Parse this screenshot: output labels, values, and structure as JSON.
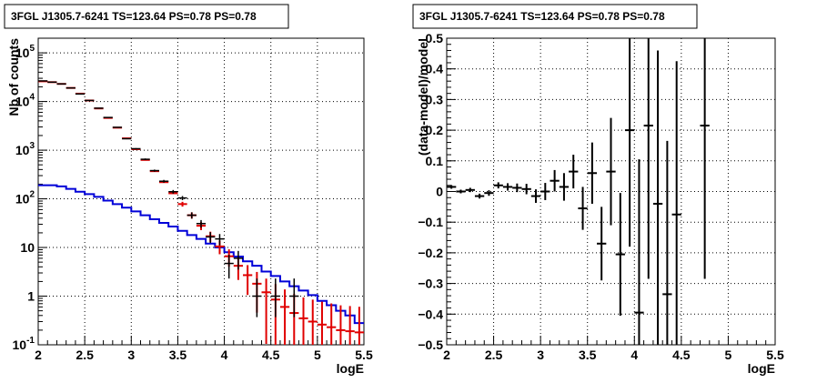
{
  "colors": {
    "data": "#000000",
    "model": "#e00000",
    "background": "#0000d8",
    "grid": "#000000"
  },
  "chart_data": [
    {
      "type": "line",
      "title": "3FGL J1305.7-6241 TS=123.64 PS=0.78 PS=0.78",
      "xlabel": "logE",
      "ylabel": "Nb of counts",
      "xlim": [
        2,
        5.5
      ],
      "ylim": [
        0.1,
        200000
      ],
      "yscale": "log",
      "grid": true,
      "x_ticks": [
        "2",
        "2.5",
        "3",
        "3.5",
        "4",
        "4.5",
        "5",
        "5.5"
      ],
      "y_ticks": [
        {
          "v": 0.1,
          "base": "10",
          "exp": "-1"
        },
        {
          "v": 1,
          "base": "1",
          "exp": ""
        },
        {
          "v": 10,
          "base": "10",
          "exp": ""
        },
        {
          "v": 100,
          "base": "10",
          "exp": "2"
        },
        {
          "v": 1000,
          "base": "10",
          "exp": "3"
        },
        {
          "v": 10000,
          "base": "10",
          "exp": "4"
        },
        {
          "v": 100000,
          "base": "10",
          "exp": "5"
        }
      ],
      "bin_edges": [
        2.0,
        2.1,
        2.2,
        2.3,
        2.4,
        2.5,
        2.6,
        2.7,
        2.8,
        2.9,
        3.0,
        3.1,
        3.2,
        3.3,
        3.4,
        3.5,
        3.6,
        3.7,
        3.8,
        3.9,
        4.0,
        4.1,
        4.2,
        4.3,
        4.4,
        4.5,
        4.6,
        4.7,
        4.8,
        4.9,
        5.0,
        5.1,
        5.2,
        5.3,
        5.4,
        5.5
      ],
      "series": [
        {
          "role": "model",
          "values": [
            26000,
            25000,
            23000,
            19000,
            14500,
            10500,
            7200,
            4600,
            2900,
            1750,
            1050,
            630,
            370,
            220,
            130,
            78,
            46,
            28,
            17,
            10.5,
            6.6,
            4.2,
            2.7,
            1.8,
            1.2,
            0.85,
            0.6,
            0.45,
            0.35,
            0.3,
            0.26,
            0.23,
            0.2,
            0.19,
            0.18
          ],
          "errors": [
            0,
            0,
            0,
            0,
            0,
            0,
            0,
            0,
            0,
            0,
            0,
            0,
            0,
            0,
            0,
            0,
            0,
            0,
            0,
            0,
            0,
            0,
            0,
            0,
            0,
            0,
            0,
            0,
            0,
            0,
            0,
            0,
            0,
            0,
            0
          ]
        },
        {
          "role": "background",
          "values": [
            190,
            190,
            180,
            160,
            140,
            125,
            110,
            92,
            78,
            66,
            55,
            46,
            38,
            32,
            27,
            22,
            18,
            15,
            12,
            10,
            8,
            6.5,
            5.2,
            4.2,
            3.2,
            2.6,
            2.0,
            1.6,
            1.3,
            1.05,
            0.8,
            0.65,
            0.5,
            0.4,
            0.28
          ]
        },
        {
          "role": "data",
          "x": [
            2.05,
            2.15,
            2.25,
            2.35,
            2.45,
            2.55,
            2.65,
            2.75,
            2.85,
            2.95,
            3.05,
            3.15,
            3.25,
            3.35,
            3.45,
            3.55,
            3.65,
            3.75,
            3.85,
            3.95,
            4.05,
            4.15,
            4.35,
            4.55,
            4.75
          ],
          "y": [
            26500,
            25000,
            23000,
            19000,
            14300,
            10500,
            7300,
            4700,
            2950,
            1720,
            1070,
            650,
            380,
            230,
            140,
            104,
            46,
            31,
            16.5,
            15,
            4.7,
            6,
            1,
            1,
            1
          ],
          "err_lo": [
            160,
            160,
            150,
            135,
            120,
            100,
            85,
            68,
            55,
            41,
            33,
            25,
            19,
            15,
            12,
            10,
            6.8,
            5.6,
            4.1,
            3.9,
            2.4,
            2.5,
            0.63,
            0.63,
            0.63
          ],
          "err_hi": [
            160,
            160,
            150,
            135,
            120,
            100,
            85,
            68,
            55,
            41,
            33,
            25,
            19,
            15,
            12,
            10,
            6.8,
            5.6,
            4.1,
            3.9,
            2.4,
            2.5,
            1.3,
            1.3,
            1.3
          ]
        }
      ]
    },
    {
      "type": "scatter",
      "title": "3FGL J1305.7-6241 TS=123.64 PS=0.78 PS=0.78",
      "xlabel": "logE",
      "ylabel": "(data-model)/model",
      "xlim": [
        2,
        5.5
      ],
      "ylim": [
        -0.5,
        0.5
      ],
      "grid": true,
      "x_ticks": [
        "2",
        "2.5",
        "3",
        "3.5",
        "4",
        "4.5",
        "5",
        "5.5"
      ],
      "y_ticks": [
        "-0.5",
        "-0.4",
        "-0.3",
        "-0.2",
        "-0.1",
        "0",
        "0.1",
        "0.2",
        "0.3",
        "0.4",
        "0.5"
      ],
      "series": [
        {
          "role": "residual",
          "x": [
            2.05,
            2.15,
            2.25,
            2.35,
            2.45,
            2.55,
            2.65,
            2.75,
            2.85,
            2.95,
            3.05,
            3.15,
            3.25,
            3.35,
            3.45,
            3.55,
            3.65,
            3.75,
            3.85,
            3.95,
            4.05,
            4.15,
            4.25,
            4.35,
            4.45,
            4.75
          ],
          "y": [
            0.015,
            0.0,
            0.005,
            -0.015,
            -0.005,
            0.02,
            0.015,
            0.012,
            0.008,
            -0.015,
            0.0,
            0.035,
            0.015,
            0.065,
            -0.055,
            0.06,
            -0.17,
            0.065,
            -0.205,
            0.2,
            -0.395,
            0.215,
            -0.04,
            -0.335,
            -0.075,
            0.215
          ],
          "err": [
            0.006,
            0.006,
            0.007,
            0.008,
            0.009,
            0.01,
            0.012,
            0.014,
            0.017,
            0.022,
            0.028,
            0.035,
            0.045,
            0.055,
            0.07,
            0.1,
            0.12,
            0.175,
            0.2,
            0.38,
            0.5,
            0.5,
            0.5,
            0.5,
            0.5,
            0.5
          ]
        }
      ]
    }
  ]
}
